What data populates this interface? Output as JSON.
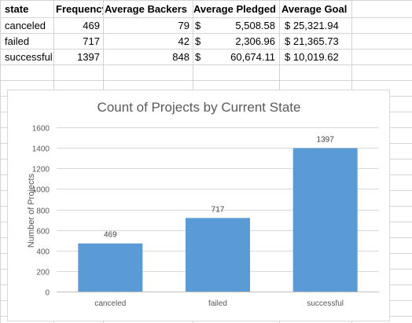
{
  "table": {
    "headers": [
      "state",
      "Frequency",
      "Average Backers",
      "Average Pledged",
      "Average Goal"
    ],
    "rows": [
      {
        "state": "canceled",
        "frequency": "469",
        "backers": "79",
        "pledged_sym": "$",
        "pledged": "5,508.58",
        "goal": "$ 25,321.94"
      },
      {
        "state": "failed",
        "frequency": "717",
        "backers": "42",
        "pledged_sym": "$",
        "pledged": "2,306.96",
        "goal": "$ 21,365.73"
      },
      {
        "state": "successful",
        "frequency": "1397",
        "backers": "848",
        "pledged_sym": "$",
        "pledged": "60,674.11",
        "goal": "$ 10,019.62"
      }
    ]
  },
  "chart_data": {
    "type": "bar",
    "title": "Count of Projects by Current State",
    "xlabel": "",
    "ylabel": "Number of Projects",
    "categories": [
      "canceled",
      "failed",
      "successful"
    ],
    "values": [
      469,
      717,
      1397
    ],
    "data_labels": [
      "469",
      "717",
      "1397"
    ],
    "ylim": [
      0,
      1600
    ],
    "yticks": [
      "0",
      "200",
      "400",
      "600",
      "800",
      "1000",
      "1200",
      "1400",
      "1600"
    ],
    "grid": true,
    "legend": "none",
    "bar_color": "#5b9bd5"
  }
}
